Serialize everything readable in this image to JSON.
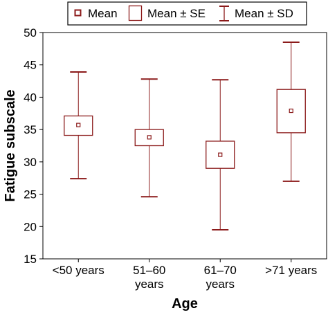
{
  "chart_data": {
    "type": "box",
    "title": "",
    "xlabel": "Age",
    "ylabel": "Fatigue subscale",
    "ylim": [
      15,
      50
    ],
    "yticks": [
      15,
      20,
      25,
      30,
      35,
      40,
      45,
      50
    ],
    "categories": [
      [
        "<50 years"
      ],
      [
        "51–60",
        "years"
      ],
      [
        "61–70",
        "years"
      ],
      [
        ">71 years"
      ]
    ],
    "series": [
      {
        "category": "<50 years",
        "mean": 35.7,
        "se_low": 34.1,
        "se_high": 37.1,
        "sd_low": 27.4,
        "sd_high": 43.9
      },
      {
        "category": "51–60 years",
        "mean": 33.8,
        "se_low": 32.5,
        "se_high": 35.0,
        "sd_low": 24.6,
        "sd_high": 42.8
      },
      {
        "category": "61–70 years",
        "mean": 31.1,
        "se_low": 29.0,
        "se_high": 33.2,
        "sd_low": 19.5,
        "sd_high": 42.7
      },
      {
        "category": ">71 years",
        "mean": 37.9,
        "se_low": 34.5,
        "se_high": 41.2,
        "sd_low": 27.0,
        "sd_high": 48.5
      }
    ],
    "legend": {
      "position": "top-center",
      "items": [
        {
          "label": "Mean",
          "symbol": "mean-marker-icon"
        },
        {
          "label": "Mean ± SE",
          "symbol": "box-icon"
        },
        {
          "label": "Mean ± SD",
          "symbol": "whisker-icon"
        }
      ]
    },
    "grid": false,
    "colors": {
      "series": "#8b1a1a",
      "axis": "#000000",
      "legend_border": "#000000"
    }
  }
}
